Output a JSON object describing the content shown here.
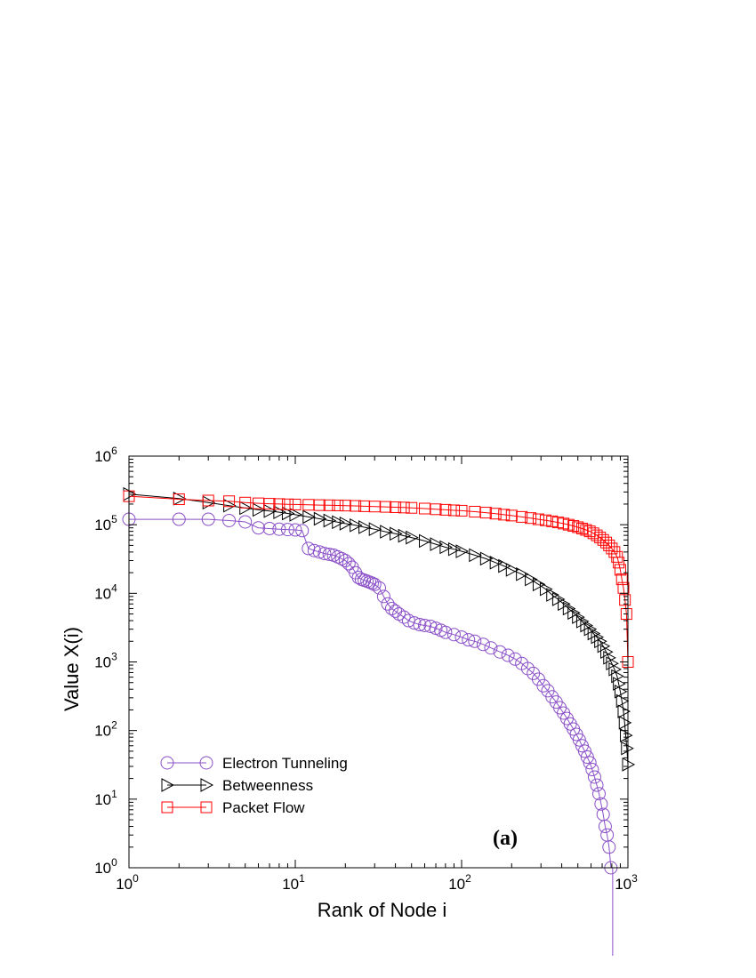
{
  "chart_data": {
    "type": "scatter",
    "title": "",
    "panel_label": "(a)",
    "xlabel": "Rank of Node i",
    "ylabel": "Value X(i)",
    "xscale": "log",
    "yscale": "log",
    "xlim": [
      1,
      1000
    ],
    "ylim": [
      1,
      1000000
    ],
    "x_ticks": [
      {
        "value": 1,
        "base": "10",
        "exp": "0"
      },
      {
        "value": 10,
        "base": "10",
        "exp": "1"
      },
      {
        "value": 100,
        "base": "10",
        "exp": "2"
      },
      {
        "value": 1000,
        "base": "10",
        "exp": "3"
      }
    ],
    "y_ticks": [
      {
        "value": 1,
        "base": "10",
        "exp": "0"
      },
      {
        "value": 10,
        "base": "10",
        "exp": "1"
      },
      {
        "value": 100,
        "base": "10",
        "exp": "2"
      },
      {
        "value": 1000,
        "base": "10",
        "exp": "3"
      },
      {
        "value": 10000,
        "base": "10",
        "exp": "4"
      },
      {
        "value": 100000,
        "base": "10",
        "exp": "5"
      },
      {
        "value": 1000000,
        "base": "10",
        "exp": "6"
      }
    ],
    "grid": false,
    "legend_position": "bottom-left",
    "series": [
      {
        "name": "Electron Tunneling",
        "color": "#8a4fc8",
        "marker": "circle",
        "points": [
          [
            1,
            120000
          ],
          [
            2,
            120000
          ],
          [
            3,
            120000
          ],
          [
            4,
            115000
          ],
          [
            5,
            110000
          ],
          [
            6,
            90000
          ],
          [
            7,
            88000
          ],
          [
            8,
            86000
          ],
          [
            9,
            85000
          ],
          [
            10,
            84000
          ],
          [
            11,
            82000
          ],
          [
            12,
            45000
          ],
          [
            13,
            42000
          ],
          [
            14,
            40000
          ],
          [
            15,
            38000
          ],
          [
            16,
            37000
          ],
          [
            17,
            36000
          ],
          [
            18,
            34000
          ],
          [
            19,
            32000
          ],
          [
            20,
            30000
          ],
          [
            21,
            27000
          ],
          [
            22,
            24000
          ],
          [
            23,
            20000
          ],
          [
            24,
            17000
          ],
          [
            25,
            16000
          ],
          [
            26,
            15500
          ],
          [
            27,
            15000
          ],
          [
            28,
            14500
          ],
          [
            29,
            14000
          ],
          [
            30,
            13500
          ],
          [
            32,
            12000
          ],
          [
            34,
            9000
          ],
          [
            36,
            7000
          ],
          [
            38,
            6000
          ],
          [
            40,
            5500
          ],
          [
            42,
            5000
          ],
          [
            45,
            4500
          ],
          [
            48,
            4000
          ],
          [
            52,
            3700
          ],
          [
            56,
            3500
          ],
          [
            60,
            3400
          ],
          [
            65,
            3300
          ],
          [
            70,
            3100
          ],
          [
            75,
            2900
          ],
          [
            80,
            2700
          ],
          [
            90,
            2500
          ],
          [
            100,
            2300
          ],
          [
            110,
            2100
          ],
          [
            120,
            2000
          ],
          [
            135,
            1800
          ],
          [
            150,
            1600
          ],
          [
            170,
            1400
          ],
          [
            190,
            1250
          ],
          [
            210,
            1100
          ],
          [
            230,
            950
          ],
          [
            250,
            800
          ],
          [
            270,
            680
          ],
          [
            290,
            560
          ],
          [
            310,
            450
          ],
          [
            330,
            380
          ],
          [
            350,
            310
          ],
          [
            370,
            260
          ],
          [
            390,
            215
          ],
          [
            410,
            180
          ],
          [
            430,
            150
          ],
          [
            450,
            125
          ],
          [
            470,
            105
          ],
          [
            490,
            88
          ],
          [
            510,
            73
          ],
          [
            530,
            60
          ],
          [
            550,
            50
          ],
          [
            570,
            41
          ],
          [
            590,
            34
          ],
          [
            610,
            27
          ],
          [
            630,
            21
          ],
          [
            650,
            16
          ],
          [
            670,
            12
          ],
          [
            690,
            8.5
          ],
          [
            710,
            6
          ],
          [
            730,
            4
          ],
          [
            750,
            3
          ],
          [
            770,
            2
          ],
          [
            790,
            1
          ]
        ]
      },
      {
        "name": "Betweenness",
        "color": "#000000",
        "marker": "triangle-right",
        "points": [
          [
            1,
            280000
          ],
          [
            2,
            240000
          ],
          [
            3,
            210000
          ],
          [
            4,
            190000
          ],
          [
            5,
            175000
          ],
          [
            6,
            165000
          ],
          [
            7,
            158000
          ],
          [
            8,
            152000
          ],
          [
            9,
            146000
          ],
          [
            10,
            140000
          ],
          [
            12,
            130000
          ],
          [
            14,
            122000
          ],
          [
            16,
            115000
          ],
          [
            18,
            109000
          ],
          [
            20,
            104000
          ],
          [
            23,
            98000
          ],
          [
            26,
            92000
          ],
          [
            30,
            86000
          ],
          [
            35,
            79000
          ],
          [
            40,
            74000
          ],
          [
            45,
            69000
          ],
          [
            50,
            65000
          ],
          [
            60,
            58000
          ],
          [
            70,
            52000
          ],
          [
            80,
            47000
          ],
          [
            90,
            44000
          ],
          [
            100,
            41000
          ],
          [
            120,
            36000
          ],
          [
            140,
            32000
          ],
          [
            160,
            28000
          ],
          [
            180,
            25000
          ],
          [
            200,
            22000
          ],
          [
            230,
            19000
          ],
          [
            260,
            16000
          ],
          [
            290,
            13500
          ],
          [
            320,
            11500
          ],
          [
            350,
            9500
          ],
          [
            380,
            8200
          ],
          [
            410,
            7000
          ],
          [
            440,
            6000
          ],
          [
            470,
            5200
          ],
          [
            500,
            4500
          ],
          [
            530,
            3900
          ],
          [
            560,
            3400
          ],
          [
            590,
            3000
          ],
          [
            620,
            2600
          ],
          [
            650,
            2300
          ],
          [
            680,
            2000
          ],
          [
            710,
            1700
          ],
          [
            740,
            1400
          ],
          [
            770,
            1150
          ],
          [
            800,
            950
          ],
          [
            830,
            780
          ],
          [
            860,
            620
          ],
          [
            880,
            480
          ],
          [
            900,
            370
          ],
          [
            920,
            270
          ],
          [
            940,
            190
          ],
          [
            955,
            130
          ],
          [
            970,
            85
          ],
          [
            985,
            55
          ],
          [
            1000,
            32
          ]
        ]
      },
      {
        "name": "Packet Flow",
        "color": "#ff0000",
        "marker": "square",
        "points": [
          [
            1,
            260000
          ],
          [
            2,
            235000
          ],
          [
            3,
            225000
          ],
          [
            4,
            220000
          ],
          [
            5,
            210000
          ],
          [
            6,
            205000
          ],
          [
            7,
            202000
          ],
          [
            8,
            200000
          ],
          [
            9,
            198000
          ],
          [
            10,
            197000
          ],
          [
            12,
            195000
          ],
          [
            14,
            193000
          ],
          [
            16,
            192000
          ],
          [
            18,
            191000
          ],
          [
            20,
            190000
          ],
          [
            23,
            188000
          ],
          [
            26,
            186000
          ],
          [
            30,
            184000
          ],
          [
            35,
            182000
          ],
          [
            40,
            180000
          ],
          [
            45,
            178000
          ],
          [
            50,
            176000
          ],
          [
            60,
            172000
          ],
          [
            70,
            168000
          ],
          [
            80,
            165000
          ],
          [
            90,
            162000
          ],
          [
            100,
            160000
          ],
          [
            120,
            155000
          ],
          [
            140,
            150000
          ],
          [
            160,
            145000
          ],
          [
            180,
            140000
          ],
          [
            200,
            136000
          ],
          [
            230,
            130000
          ],
          [
            260,
            125000
          ],
          [
            290,
            120000
          ],
          [
            320,
            116000
          ],
          [
            350,
            112000
          ],
          [
            380,
            108000
          ],
          [
            410,
            104000
          ],
          [
            440,
            100000
          ],
          [
            470,
            96000
          ],
          [
            500,
            92000
          ],
          [
            530,
            88000
          ],
          [
            560,
            84000
          ],
          [
            590,
            80000
          ],
          [
            620,
            75000
          ],
          [
            650,
            70000
          ],
          [
            680,
            65000
          ],
          [
            710,
            60000
          ],
          [
            740,
            55000
          ],
          [
            770,
            50000
          ],
          [
            800,
            45000
          ],
          [
            830,
            40000
          ],
          [
            860,
            34000
          ],
          [
            880,
            28000
          ],
          [
            900,
            22000
          ],
          [
            920,
            16000
          ],
          [
            940,
            12000
          ],
          [
            960,
            8000
          ],
          [
            980,
            5000
          ],
          [
            1000,
            1000
          ]
        ]
      }
    ]
  }
}
